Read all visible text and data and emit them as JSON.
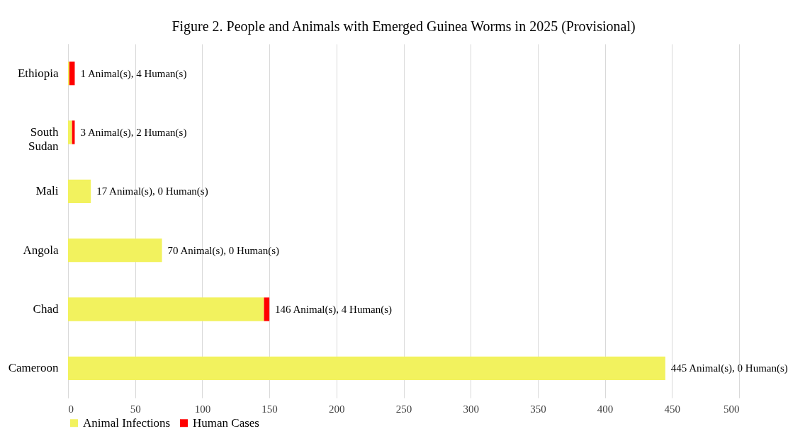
{
  "chart_data": {
    "type": "bar",
    "orientation": "horizontal",
    "stacked": true,
    "title": "Figure 2. People and Animals with Emerged Guinea Worms in 2025 (Provisional)",
    "categories": [
      "Ethiopia",
      "South Sudan",
      "Mali",
      "Angola",
      "Chad",
      "Cameroon"
    ],
    "series": [
      {
        "name": "Animal Infections",
        "color": "#f2f25e",
        "values": [
          1,
          3,
          17,
          70,
          146,
          445
        ]
      },
      {
        "name": "Human Cases",
        "color": "#ff0000",
        "values": [
          4,
          2,
          0,
          0,
          4,
          0
        ]
      }
    ],
    "value_labels": [
      "1 Animal(s), 4 Human(s)",
      "3 Animal(s), 2 Human(s)",
      "17 Animal(s), 0 Human(s)",
      "70 Animal(s), 0 Human(s)",
      "146 Animal(s), 4 Human(s)",
      "445 Animal(s), 0 Human(s)"
    ],
    "xlim": [
      0,
      500
    ],
    "xticks": [
      0,
      50,
      100,
      150,
      200,
      250,
      300,
      350,
      400,
      450,
      500
    ],
    "grid": "x",
    "legend": "bottom"
  }
}
